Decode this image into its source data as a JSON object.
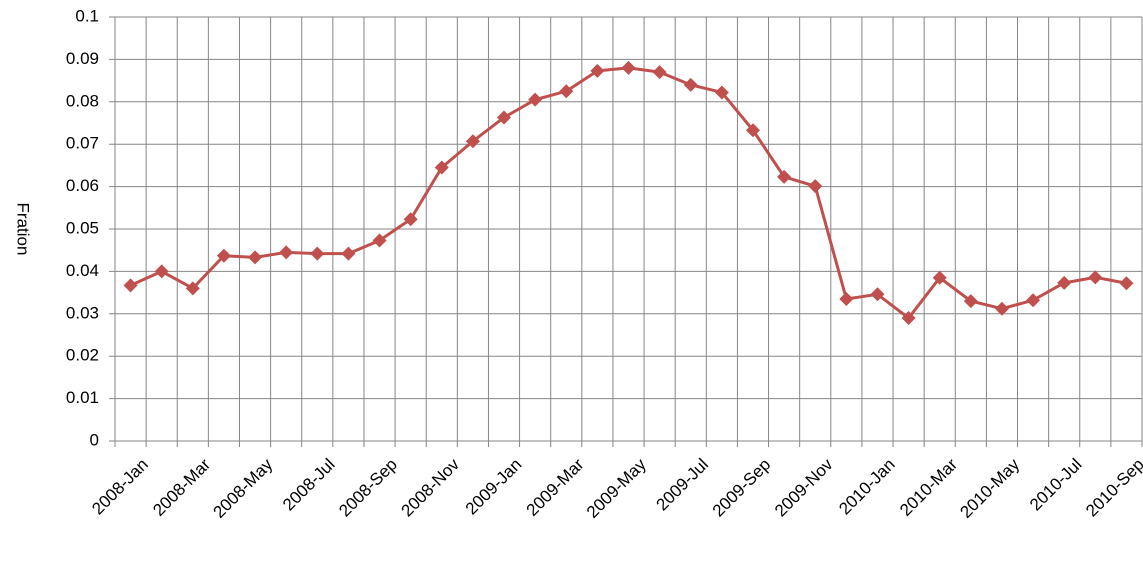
{
  "chart_data": {
    "type": "line",
    "y_label": "Fration",
    "categories": [
      "2008-Jan",
      null,
      "2008-Mar",
      null,
      "2008-May",
      null,
      "2008-Jul",
      null,
      "2008-Sep",
      null,
      "2008-Nov",
      null,
      "2009-Jan",
      null,
      "2009-Mar",
      null,
      "2009-May",
      null,
      "2009-Jul",
      null,
      "2009-Sep",
      null,
      "2009-Nov",
      null,
      "2010-Jan",
      null,
      "2010-Mar",
      null,
      "2010-May",
      null,
      "2010-Jul",
      null,
      "2010-Sep"
    ],
    "series": [
      {
        "color": "#c0504d",
        "values": [
          0.0367,
          0.04,
          0.036,
          0.0437,
          0.0433,
          0.0445,
          0.0442,
          0.0442,
          0.0473,
          0.0523,
          0.0645,
          0.0707,
          0.0763,
          0.0805,
          0.0825,
          0.0873,
          0.088,
          0.087,
          0.084,
          0.0822,
          0.0733,
          0.0623,
          0.0601,
          0.0335,
          0.0346,
          0.029,
          0.0385,
          0.033,
          0.0312,
          0.0332,
          0.0373,
          0.0386,
          0.0372
        ]
      }
    ],
    "ylim": [
      0,
      0.1
    ],
    "yticks": [
      0,
      0.01,
      0.02,
      0.03,
      0.04,
      0.05,
      0.06,
      0.07,
      0.08,
      0.09,
      0.1
    ],
    "grid": true
  }
}
